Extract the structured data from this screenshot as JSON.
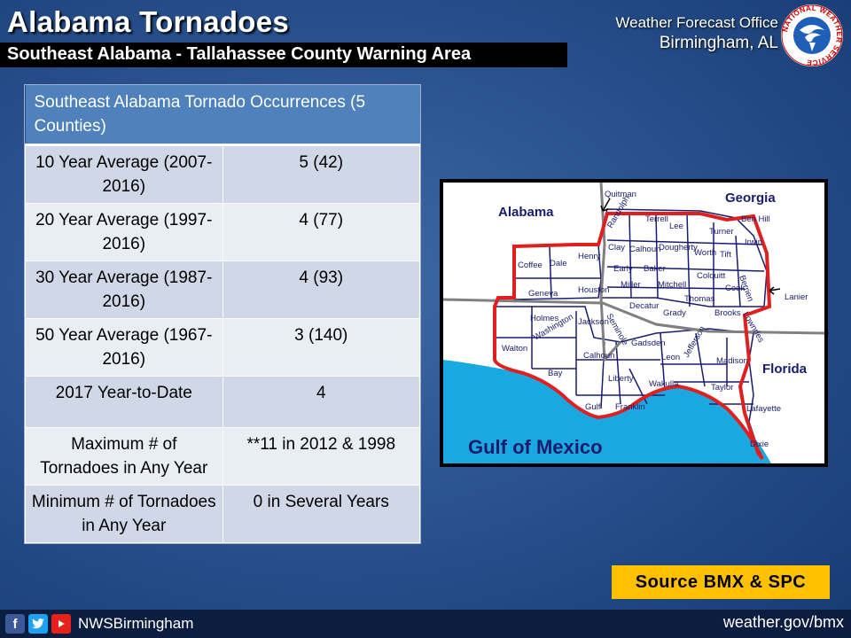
{
  "header": {
    "title": "Alabama Tornadoes",
    "subtitle": "Southeast Alabama - Tallahassee County Warning Area",
    "office_line1": "Weather Forecast Office",
    "office_line2": "Birmingham, AL",
    "logo_text": "NATIONAL WEATHER SERVICE"
  },
  "table": {
    "header": "Southeast Alabama Tornado Occurrences (5 Counties)",
    "rows": [
      {
        "label": "10 Year Average (2007-2016)",
        "value": "5  (42)"
      },
      {
        "label": "20 Year Average (1997-2016)",
        "value": "4  (77)"
      },
      {
        "label": "30 Year Average (1987-2016)",
        "value": "4  (93)"
      },
      {
        "label": "50 Year Average (1967-2016)",
        "value": "3  (140)"
      },
      {
        "label": "2017 Year-to-Date",
        "value": "4"
      },
      {
        "label": "Maximum # of Tornadoes in Any Year",
        "value": "**11 in 2012 & 1998"
      },
      {
        "label": "Minimum # of Tornadoes in Any Year",
        "value": "0 in Several Years"
      }
    ]
  },
  "map": {
    "state_alabama": "Alabama",
    "state_georgia": "Georgia",
    "state_florida": "Florida",
    "water": "Gulf of Mexico",
    "counties": [
      "Quitman",
      "Randolph",
      "Terrell",
      "Lee",
      "Clay",
      "Calhoun",
      "Dougherty",
      "Worth",
      "Turner",
      "Ben Hill",
      "Irwin",
      "Tift",
      "Henry",
      "Early",
      "Baker",
      "Colquitt",
      "Berrien",
      "Coffee",
      "Dale",
      "Miller",
      "Mitchell",
      "Cook",
      "Lanier",
      "Geneva",
      "Houston",
      "Seminole",
      "Decatur",
      "Grady",
      "Thomas",
      "Brooks",
      "Lowndes",
      "Holmes",
      "Jackson",
      "Washington",
      "Walton",
      "Gadsden",
      "Leon",
      "Jefferson",
      "Madison",
      "Calhoun",
      "Liberty",
      "Bay",
      "Wakulla",
      "Taylor",
      "Gulf",
      "Franklin",
      "Lafayette",
      "Dixie"
    ]
  },
  "source": "Source BMX & SPC",
  "footer": {
    "handle": "NWSBirmingham",
    "website": "weather.gov/bmx"
  }
}
